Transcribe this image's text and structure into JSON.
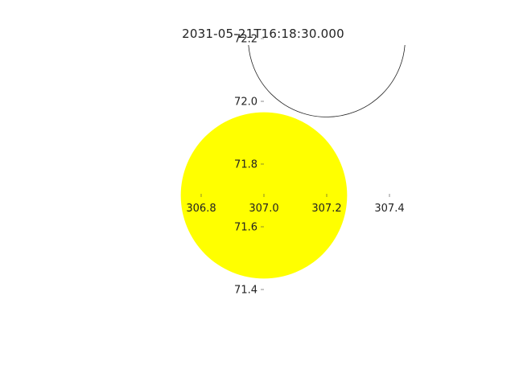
{
  "title": "2031-05-21T16:18:30.000",
  "colors": {
    "sun_fill": "#ffff00",
    "moon_stroke": "#222222",
    "axis": "#444444",
    "text": "#222222"
  },
  "chart_data": {
    "type": "scatter",
    "title": "2031-05-21T16:18:30.000",
    "xlabel": "",
    "ylabel": "",
    "xlim": [
      306.75,
      307.55
    ],
    "ylim": [
      71.35,
      72.15
    ],
    "x_ticks": [
      {
        "value": 306.8,
        "label": "306.8"
      },
      {
        "value": 307.0,
        "label": "307.0"
      },
      {
        "value": 307.2,
        "label": "307.2"
      },
      {
        "value": 307.4,
        "label": "307.4"
      }
    ],
    "y_ticks": [
      {
        "value": 71.4,
        "label": "71.4"
      },
      {
        "value": 71.6,
        "label": "71.6"
      },
      {
        "value": 71.8,
        "label": "71.8"
      },
      {
        "value": 72.0,
        "label": "72.0"
      },
      {
        "value": 72.2,
        "label": "72.2"
      }
    ],
    "bodies": [
      {
        "name": "sun",
        "x": 307.0,
        "y": 71.7,
        "radius": 0.265,
        "fill": "#ffff00",
        "outline": false
      },
      {
        "name": "moon",
        "x": 307.2,
        "y": 72.2,
        "radius": 0.25,
        "fill": "none",
        "outline": true
      }
    ],
    "grid": false,
    "legend": "none"
  }
}
